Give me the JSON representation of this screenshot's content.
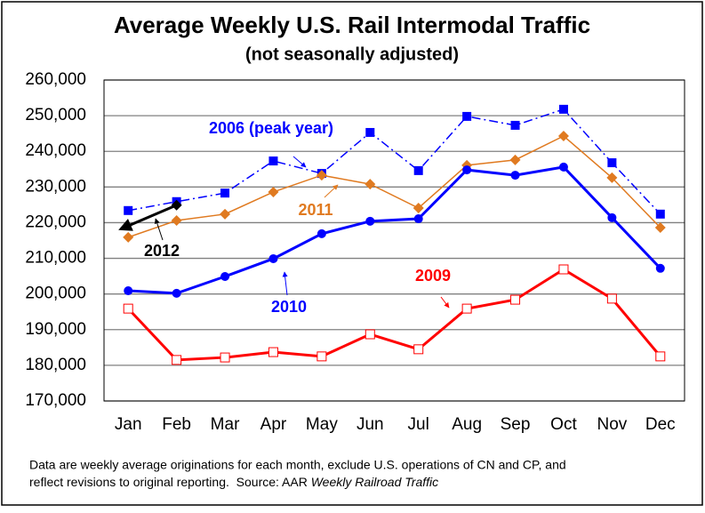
{
  "chart_data": {
    "type": "line",
    "title": "Average Weekly U.S. Rail Intermodal Traffic",
    "subtitle": "(not seasonally adjusted)",
    "categories": [
      "Jan",
      "Feb",
      "Mar",
      "Apr",
      "May",
      "Jun",
      "Jul",
      "Aug",
      "Sep",
      "Oct",
      "Nov",
      "Dec"
    ],
    "ylim": [
      170000,
      260000
    ],
    "yticks": [
      {
        "value": 170000,
        "label": "170,000"
      },
      {
        "value": 180000,
        "label": "180,000"
      },
      {
        "value": 190000,
        "label": "190,000"
      },
      {
        "value": 200000,
        "label": "200,000"
      },
      {
        "value": 210000,
        "label": "210,000"
      },
      {
        "value": 220000,
        "label": "220,000"
      },
      {
        "value": 230000,
        "label": "230,000"
      },
      {
        "value": 240000,
        "label": "240,000"
      },
      {
        "value": 250000,
        "label": "250,000"
      },
      {
        "value": 260000,
        "label": "260,000"
      }
    ],
    "grid": true,
    "series": [
      {
        "name": "2006 (peak year)",
        "color": "#0000ff",
        "dash": "dashdot",
        "marker": "square",
        "values": [
          223400,
          225900,
          228300,
          237300,
          233800,
          245300,
          234600,
          249800,
          247300,
          251800,
          236800,
          222400
        ]
      },
      {
        "name": "2011",
        "color": "#e07a20",
        "dash": "solid",
        "marker": "diamond",
        "values": [
          215900,
          220600,
          222400,
          228600,
          233300,
          230800,
          224100,
          236100,
          237600,
          244300,
          232600,
          218600
        ]
      },
      {
        "name": "2010",
        "color": "#0000ff",
        "dash": "solid",
        "marker": "circle",
        "values": [
          200900,
          200200,
          204900,
          209900,
          216900,
          220400,
          221100,
          234800,
          233300,
          235600,
          221400,
          207200
        ]
      },
      {
        "name": "2009",
        "color": "#ff0000",
        "dash": "solid",
        "marker": "square-open",
        "values": [
          195900,
          181500,
          182200,
          183700,
          182500,
          188700,
          184500,
          195900,
          198400,
          206900,
          198700,
          182500
        ]
      },
      {
        "name": "2012",
        "color": "#000000",
        "dash": "solid",
        "marker": "diamond",
        "values": [
          219100,
          224900,
          null,
          null,
          null,
          null,
          null,
          null,
          null,
          null,
          null,
          null
        ]
      }
    ],
    "note": [
      "Data are weekly average originations for each month, exclude U.S. operations of CN and CP, and",
      "reflect revisions to original reporting.  Source: AAR ",
      "Weekly Railroad Traffic"
    ]
  }
}
